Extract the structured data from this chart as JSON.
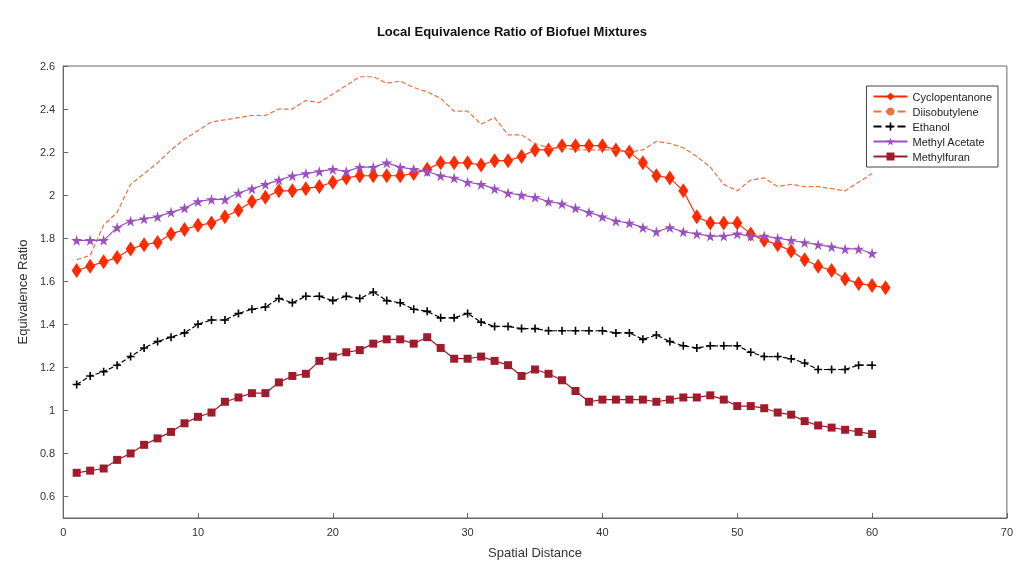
{
  "chart_data": {
    "type": "line",
    "title": "Local Equivalence Ratio of Biofuel Mixtures",
    "xlabel": "Spatial Distance",
    "ylabel": "Equivalence Ratio",
    "xlim": [
      0,
      70
    ],
    "xticks": [
      0,
      10,
      20,
      30,
      40,
      50,
      60,
      70
    ],
    "ylim": [
      0.5,
      2.6
    ],
    "yticks": [
      0.6,
      0.8,
      1,
      1.2,
      1.4,
      1.6,
      1.8,
      2,
      2.2,
      2.4,
      2.6
    ],
    "grid": false,
    "legend": "top right",
    "x": [
      1,
      2,
      3,
      4,
      5,
      6,
      7,
      8,
      9,
      10,
      11,
      12,
      13,
      14,
      15,
      16,
      17,
      18,
      19,
      20,
      21,
      22,
      23,
      24,
      25,
      26,
      27,
      28,
      29,
      30,
      31,
      32,
      33,
      34,
      35,
      36,
      37,
      38,
      39,
      40,
      41,
      42,
      43,
      44,
      45,
      46,
      47,
      48,
      49,
      50,
      51,
      52,
      53,
      54,
      55,
      56,
      57,
      58,
      59,
      60
    ],
    "series": [
      {
        "name": "Cyclopentanone",
        "color": "#ff2a00",
        "marker": "diamond",
        "line_style": "solid",
        "x": [
          1,
          2,
          3,
          4,
          5,
          6,
          7,
          8,
          9,
          10,
          11,
          12,
          13,
          14,
          15,
          16,
          17,
          18,
          19,
          20,
          21,
          22,
          23,
          24,
          25,
          26,
          27,
          28,
          29,
          30,
          31,
          32,
          33,
          34,
          35,
          36,
          37,
          38,
          39,
          40,
          41,
          42,
          43,
          44,
          45,
          46,
          47,
          48,
          49,
          50,
          51,
          52,
          53,
          54,
          55,
          56,
          57,
          58,
          59,
          60,
          61
        ],
        "values": [
          1.65,
          1.67,
          1.69,
          1.71,
          1.75,
          1.77,
          1.78,
          1.82,
          1.84,
          1.86,
          1.87,
          1.9,
          1.93,
          1.97,
          1.99,
          2.02,
          2.02,
          2.03,
          2.04,
          2.06,
          2.08,
          2.09,
          2.09,
          2.09,
          2.09,
          2.1,
          2.12,
          2.15,
          2.15,
          2.15,
          2.14,
          2.16,
          2.16,
          2.18,
          2.21,
          2.21,
          2.23,
          2.23,
          2.23,
          2.23,
          2.21,
          2.2,
          2.15,
          2.09,
          2.08,
          2.02,
          1.9,
          1.87,
          1.87,
          1.87,
          1.82,
          1.79,
          1.77,
          1.74,
          1.7,
          1.67,
          1.65,
          1.61,
          1.59,
          1.58,
          1.57
        ]
      },
      {
        "name": "Diisobutylene",
        "color": "#f07040",
        "marker": "none",
        "line_style": "dashed",
        "values": [
          1.7,
          1.72,
          1.86,
          1.92,
          2.05,
          2.1,
          2.15,
          2.21,
          2.26,
          2.3,
          2.34,
          2.35,
          2.36,
          2.37,
          2.37,
          2.4,
          2.4,
          2.44,
          2.43,
          2.47,
          2.51,
          2.55,
          2.55,
          2.52,
          2.53,
          2.5,
          2.48,
          2.45,
          2.39,
          2.39,
          2.33,
          2.36,
          2.28,
          2.28,
          2.24,
          2.22,
          2.22,
          2.21,
          2.21,
          2.21,
          2.21,
          2.2,
          2.21,
          2.25,
          2.24,
          2.22,
          2.18,
          2.13,
          2.05,
          2.02,
          2.07,
          2.08,
          2.04,
          2.05,
          2.04,
          2.04,
          2.03,
          2.02,
          2.06,
          2.1
        ]
      },
      {
        "name": "Ethanol",
        "color": "#000000",
        "marker": "cross",
        "line_style": "dashed",
        "values": [
          1.12,
          1.16,
          1.18,
          1.21,
          1.25,
          1.29,
          1.32,
          1.34,
          1.36,
          1.4,
          1.42,
          1.42,
          1.45,
          1.47,
          1.48,
          1.52,
          1.5,
          1.53,
          1.53,
          1.51,
          1.53,
          1.52,
          1.55,
          1.51,
          1.5,
          1.47,
          1.46,
          1.43,
          1.43,
          1.45,
          1.41,
          1.39,
          1.39,
          1.38,
          1.38,
          1.37,
          1.37,
          1.37,
          1.37,
          1.37,
          1.36,
          1.36,
          1.33,
          1.35,
          1.32,
          1.3,
          1.29,
          1.3,
          1.3,
          1.3,
          1.27,
          1.25,
          1.25,
          1.24,
          1.22,
          1.19,
          1.19,
          1.19,
          1.21,
          1.21
        ]
      },
      {
        "name": "Methyl Acetate",
        "color": "#9b4fc0",
        "marker": "star",
        "line_style": "solid",
        "values": [
          1.79,
          1.79,
          1.79,
          1.85,
          1.88,
          1.89,
          1.9,
          1.92,
          1.94,
          1.97,
          1.98,
          1.98,
          2.01,
          2.03,
          2.05,
          2.07,
          2.09,
          2.1,
          2.11,
          2.12,
          2.11,
          2.13,
          2.13,
          2.15,
          2.13,
          2.12,
          2.11,
          2.09,
          2.08,
          2.06,
          2.05,
          2.03,
          2.01,
          2,
          1.99,
          1.97,
          1.96,
          1.94,
          1.92,
          1.9,
          1.88,
          1.87,
          1.85,
          1.83,
          1.85,
          1.83,
          1.82,
          1.81,
          1.81,
          1.82,
          1.81,
          1.81,
          1.8,
          1.79,
          1.78,
          1.77,
          1.76,
          1.75,
          1.75,
          1.73
        ]
      },
      {
        "name": "Methylfuran",
        "color": "#a01c2c",
        "marker": "square",
        "line_style": "solid",
        "values": [
          0.71,
          0.72,
          0.73,
          0.77,
          0.8,
          0.84,
          0.87,
          0.9,
          0.94,
          0.97,
          0.99,
          1.04,
          1.06,
          1.08,
          1.08,
          1.13,
          1.16,
          1.17,
          1.23,
          1.25,
          1.27,
          1.28,
          1.31,
          1.33,
          1.33,
          1.31,
          1.34,
          1.29,
          1.24,
          1.24,
          1.25,
          1.23,
          1.21,
          1.16,
          1.19,
          1.17,
          1.14,
          1.09,
          1.04,
          1.05,
          1.05,
          1.05,
          1.05,
          1.04,
          1.05,
          1.06,
          1.06,
          1.07,
          1.05,
          1.02,
          1.02,
          1.01,
          0.99,
          0.98,
          0.95,
          0.93,
          0.92,
          0.91,
          0.9,
          0.89
        ]
      }
    ]
  }
}
